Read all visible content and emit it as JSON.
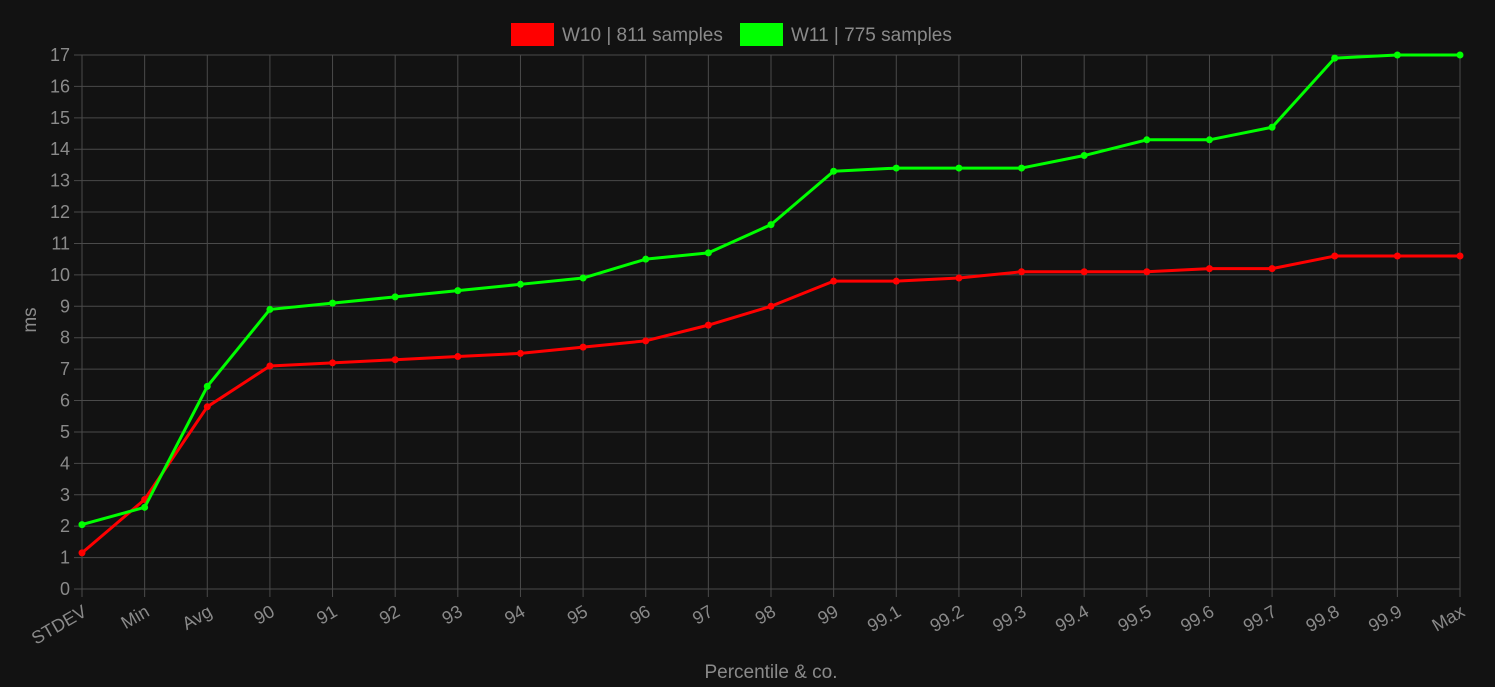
{
  "chart_data": {
    "type": "line",
    "categories": [
      "STDEV",
      "Min",
      "Avg",
      "90",
      "91",
      "92",
      "93",
      "94",
      "95",
      "96",
      "97",
      "98",
      "99",
      "99.1",
      "99.2",
      "99.3",
      "99.4",
      "99.5",
      "99.6",
      "99.7",
      "99.8",
      "99.9",
      "Max"
    ],
    "series": [
      {
        "name": "W10 | 811 samples",
        "color": "#ff0000",
        "values": [
          1.15,
          2.85,
          5.8,
          7.1,
          7.2,
          7.3,
          7.4,
          7.5,
          7.7,
          7.9,
          8.4,
          9.0,
          9.8,
          9.8,
          9.9,
          10.1,
          10.1,
          10.1,
          10.2,
          10.2,
          10.6,
          10.6,
          10.6
        ]
      },
      {
        "name": "W11 | 775 samples",
        "color": "#00ff00",
        "values": [
          2.05,
          2.6,
          6.45,
          8.9,
          9.1,
          9.3,
          9.5,
          9.7,
          9.9,
          10.5,
          10.7,
          11.6,
          13.3,
          13.4,
          13.4,
          13.4,
          13.8,
          14.3,
          14.3,
          14.7,
          16.9,
          17.0,
          17.0
        ]
      }
    ],
    "xlabel": "Percentile & co.",
    "ylabel": "ms",
    "ylim": [
      0,
      17
    ],
    "yticks": [
      0,
      1,
      2,
      3,
      4,
      5,
      6,
      7,
      8,
      9,
      10,
      11,
      12,
      13,
      14,
      15,
      16,
      17
    ],
    "grid": true,
    "legend_position": "top-center",
    "background": "#121212"
  }
}
